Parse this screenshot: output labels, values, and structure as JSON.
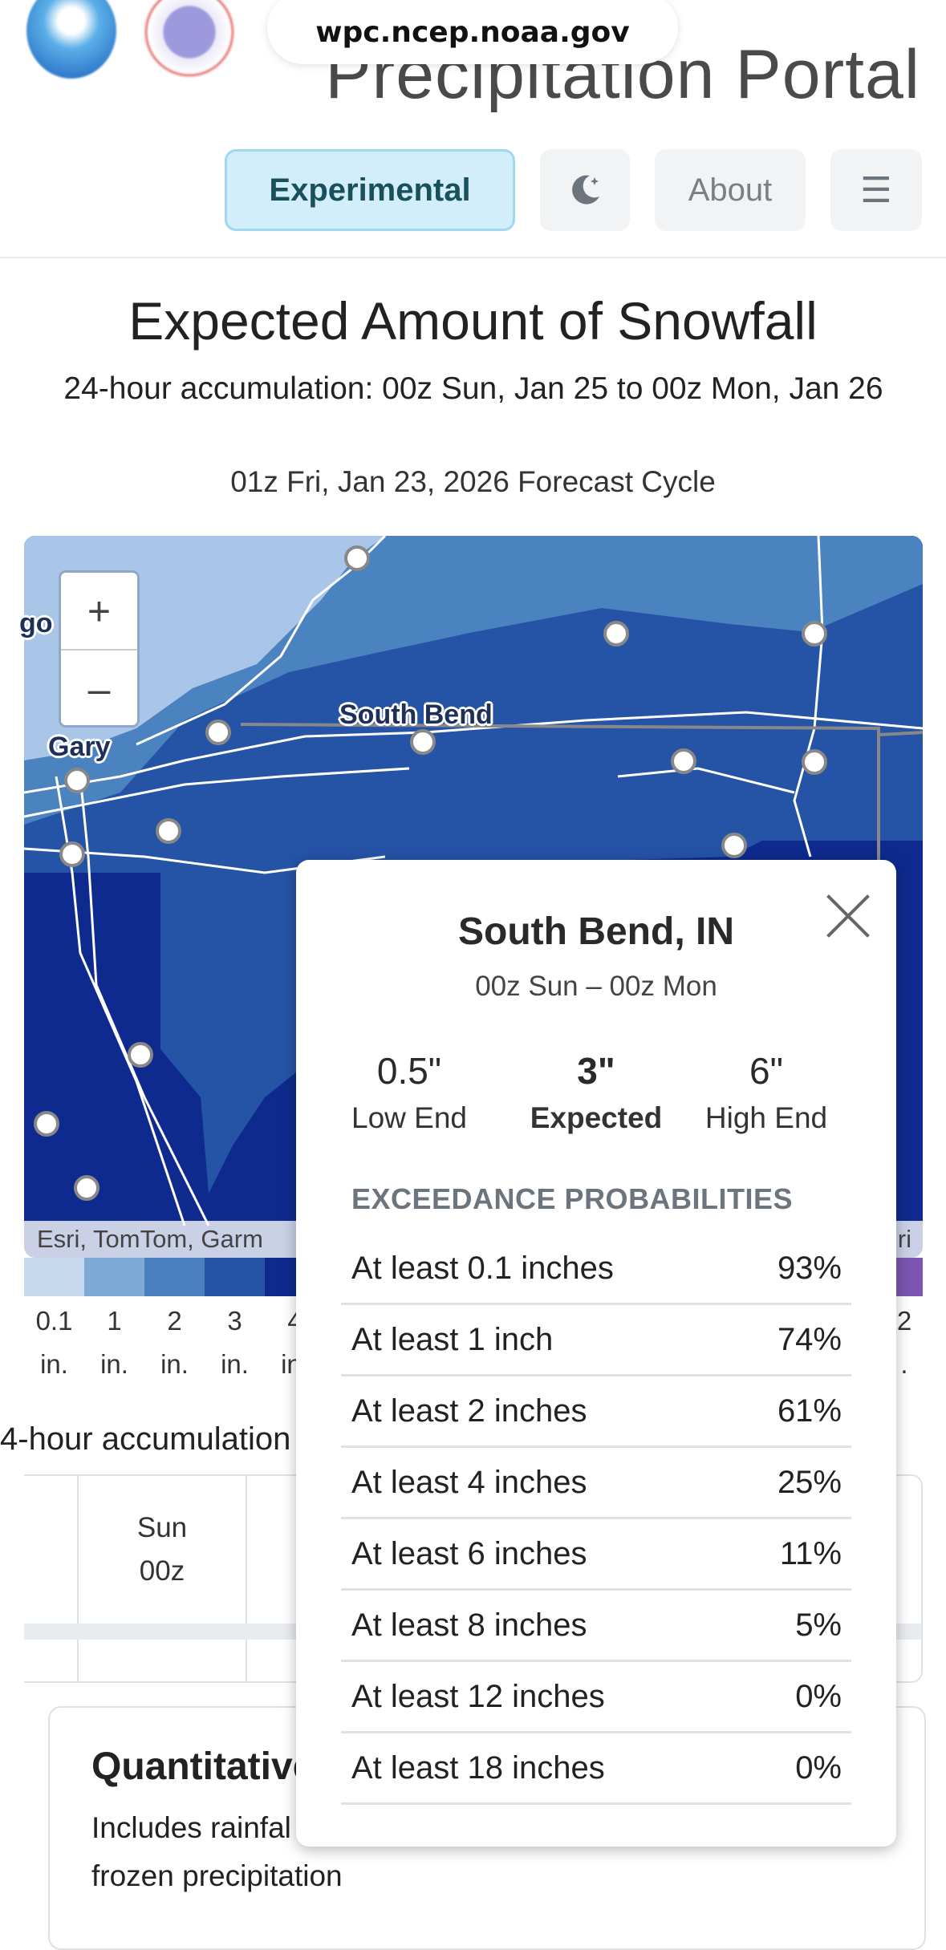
{
  "browser": {
    "url": "wpc.ncep.noaa.gov"
  },
  "header": {
    "title": "Precipitation Portal",
    "buttons": {
      "experimental": "Experimental",
      "about": "About",
      "menu_glyph": "☰"
    }
  },
  "main": {
    "heading": "Expected Amount of Snowfall",
    "accumulation": "24-hour accumulation:  00z Sun, Jan 25  to  00z Mon, Jan 26",
    "forecast_cycle": "01z Fri, Jan 23, 2026 Forecast Cycle"
  },
  "map": {
    "zoom_in": "+",
    "zoom_out": "–",
    "labels": {
      "chicago_fragment": "go",
      "gary": "Gary",
      "south_bend": "South Bend"
    },
    "attribution_left": "Esri, TomTom, Garm",
    "attribution_right": "ri",
    "colors": {
      "light": "#a9c6e8",
      "mid": "#4b83c1",
      "dark": "#2553a6",
      "deep": "#0e2a8e"
    }
  },
  "legend": {
    "items": [
      {
        "value": "0.1",
        "unit": "in.",
        "color": "#c7d9ee"
      },
      {
        "value": "1",
        "unit": "in.",
        "color": "#7eaad8"
      },
      {
        "value": "2",
        "unit": "in.",
        "color": "#4a7fc0"
      },
      {
        "value": "3",
        "unit": "in.",
        "color": "#2553a6"
      },
      {
        "value": "4",
        "unit": "in.",
        "color": "#0e2a8e"
      }
    ],
    "last": {
      "value": "2",
      "unit": ".",
      "color": "#7b55b1"
    }
  },
  "accumulation_table": {
    "label": "4-hour accumulation",
    "column": {
      "day": "Sun",
      "time": "00z"
    }
  },
  "qpf_card": {
    "title": "Quantitative",
    "description_line1": "Includes rainfal",
    "description_line2": "frozen precipitation"
  },
  "popup": {
    "location": "South Bend, IN",
    "range": "00z Sun  –  00z Mon",
    "low": {
      "value": "0.5\"",
      "label": "Low End"
    },
    "expected": {
      "value": "3\"",
      "label": "Expected"
    },
    "high": {
      "value": "6\"",
      "label": "High End"
    },
    "exceedance_heading": "EXCEEDANCE PROBABILITIES",
    "rows": [
      {
        "label": "At least 0.1 inches",
        "value": "93%"
      },
      {
        "label": "At least 1 inch",
        "value": "74%"
      },
      {
        "label": "At least 2 inches",
        "value": "61%"
      },
      {
        "label": "At least 4 inches",
        "value": "25%"
      },
      {
        "label": "At least 6 inches",
        "value": "11%"
      },
      {
        "label": "At least 8 inches",
        "value": "5%"
      },
      {
        "label": "At least 12 inches",
        "value": "0%"
      },
      {
        "label": "At least 18 inches",
        "value": "0%"
      }
    ]
  }
}
